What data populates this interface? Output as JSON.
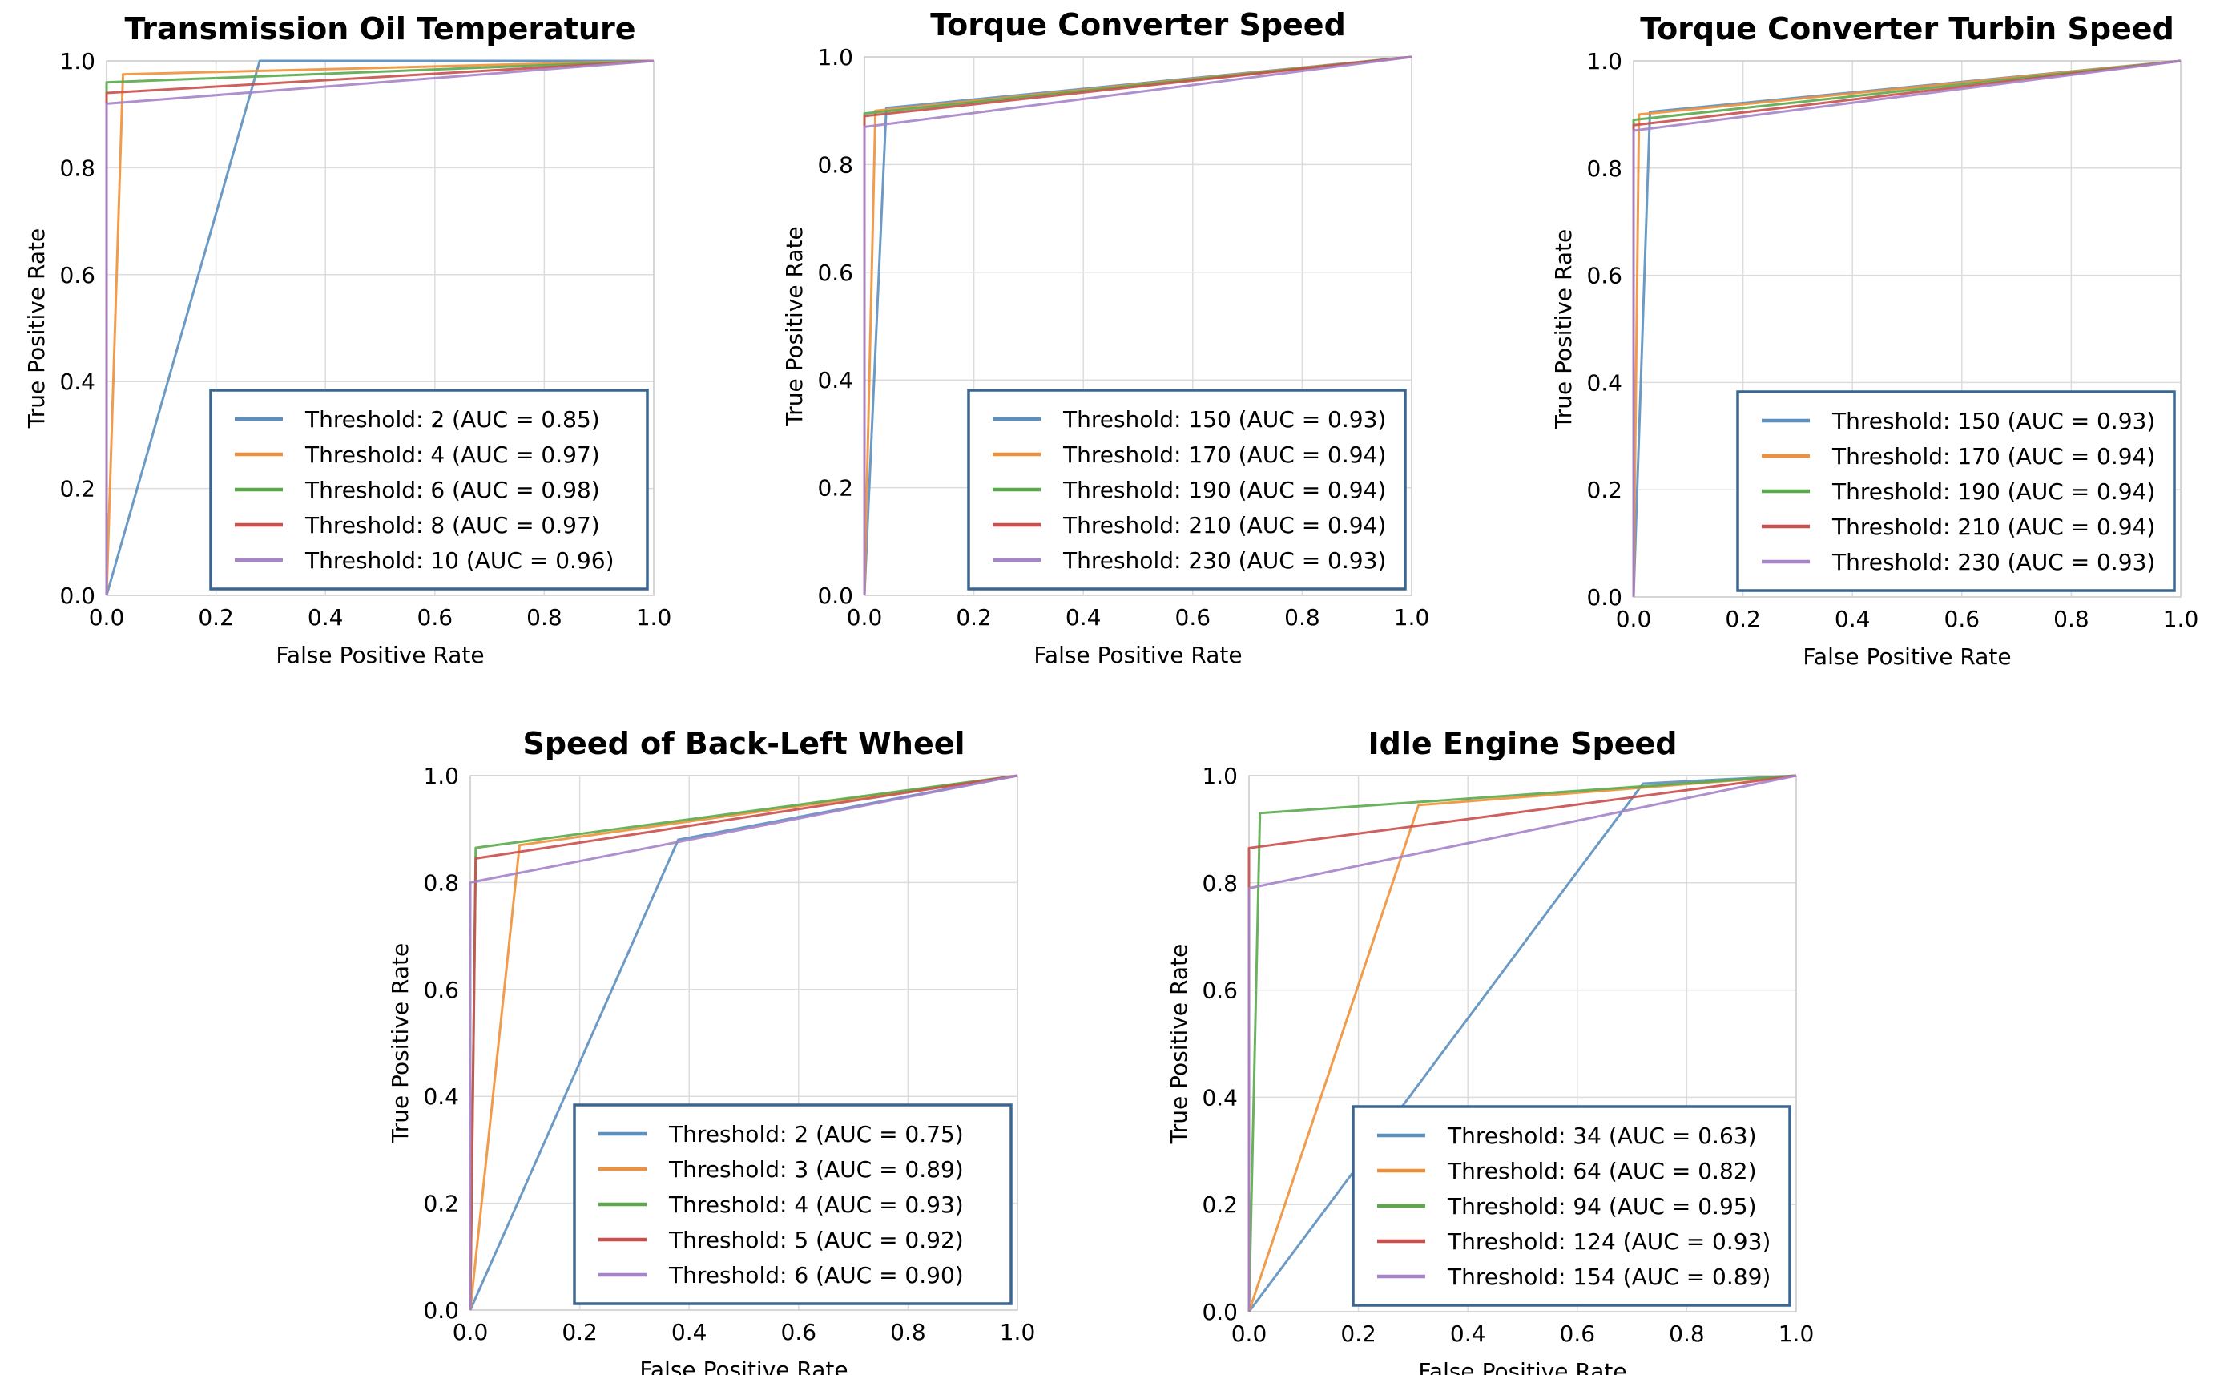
{
  "chart_data": [
    {
      "type": "line",
      "title": "Transmission Oil Temperature",
      "xlabel": "False Positive Rate",
      "ylabel": "True Positive Rate",
      "xlim": [
        0,
        1
      ],
      "ylim": [
        0,
        1
      ],
      "xticks": [
        "0.0",
        "0.2",
        "0.4",
        "0.6",
        "0.8",
        "1.0"
      ],
      "yticks": [
        "0.0",
        "0.2",
        "0.4",
        "0.6",
        "0.8",
        "1.0"
      ],
      "grid": true,
      "legend_position": "lower-right",
      "series": [
        {
          "name": "Threshold: 2 (AUC = 0.85)",
          "color": "#5b8fbf",
          "points": [
            [
              0,
              0
            ],
            [
              0.28,
              1.0
            ],
            [
              1,
              1
            ]
          ]
        },
        {
          "name": "Threshold: 4 (AUC = 0.97)",
          "color": "#f0913a",
          "points": [
            [
              0,
              0
            ],
            [
              0.03,
              0.975
            ],
            [
              1,
              1
            ]
          ]
        },
        {
          "name": "Threshold: 6 (AUC = 0.98)",
          "color": "#5aaa4c",
          "points": [
            [
              0,
              0
            ],
            [
              0,
              0.96
            ],
            [
              1,
              1
            ]
          ]
        },
        {
          "name": "Threshold: 8 (AUC = 0.97)",
          "color": "#c9504d",
          "points": [
            [
              0,
              0
            ],
            [
              0,
              0.94
            ],
            [
              1,
              1
            ]
          ]
        },
        {
          "name": "Threshold: 10 (AUC = 0.96)",
          "color": "#a783c9",
          "points": [
            [
              0,
              0
            ],
            [
              0,
              0.92
            ],
            [
              1,
              1
            ]
          ]
        }
      ]
    },
    {
      "type": "line",
      "title": "Torque Converter Speed",
      "xlabel": "False Positive Rate",
      "ylabel": "True Positive Rate",
      "xlim": [
        0,
        1
      ],
      "ylim": [
        0,
        1
      ],
      "xticks": [
        "0.0",
        "0.2",
        "0.4",
        "0.6",
        "0.8",
        "1.0"
      ],
      "yticks": [
        "0.0",
        "0.2",
        "0.4",
        "0.6",
        "0.8",
        "1.0"
      ],
      "grid": true,
      "legend_position": "lower-right",
      "series": [
        {
          "name": "Threshold: 150 (AUC = 0.93)",
          "color": "#5b8fbf",
          "points": [
            [
              0,
              0
            ],
            [
              0.04,
              0.905
            ],
            [
              1,
              1
            ]
          ]
        },
        {
          "name": "Threshold: 170 (AUC = 0.94)",
          "color": "#f0913a",
          "points": [
            [
              0,
              0
            ],
            [
              0.02,
              0.9
            ],
            [
              1,
              1
            ]
          ]
        },
        {
          "name": "Threshold: 190 (AUC = 0.94)",
          "color": "#5aaa4c",
          "points": [
            [
              0,
              0
            ],
            [
              0,
              0.895
            ],
            [
              1,
              1
            ]
          ]
        },
        {
          "name": "Threshold: 210 (AUC = 0.94)",
          "color": "#c9504d",
          "points": [
            [
              0,
              0
            ],
            [
              0,
              0.89
            ],
            [
              1,
              1
            ]
          ]
        },
        {
          "name": "Threshold: 230 (AUC = 0.93)",
          "color": "#a783c9",
          "points": [
            [
              0,
              0
            ],
            [
              0,
              0.87
            ],
            [
              1,
              1
            ]
          ]
        }
      ]
    },
    {
      "type": "line",
      "title": "Torque Converter Turbin Speed",
      "xlabel": "False Positive Rate",
      "ylabel": "True Positive Rate",
      "xlim": [
        0,
        1
      ],
      "ylim": [
        0,
        1
      ],
      "xticks": [
        "0.0",
        "0.2",
        "0.4",
        "0.6",
        "0.8",
        "1.0"
      ],
      "yticks": [
        "0.0",
        "0.2",
        "0.4",
        "0.6",
        "0.8",
        "1.0"
      ],
      "grid": true,
      "legend_position": "lower-right",
      "series": [
        {
          "name": "Threshold: 150 (AUC = 0.93)",
          "color": "#5b8fbf",
          "points": [
            [
              0,
              0
            ],
            [
              0.03,
              0.905
            ],
            [
              1,
              1
            ]
          ]
        },
        {
          "name": "Threshold: 170 (AUC = 0.94)",
          "color": "#f0913a",
          "points": [
            [
              0,
              0
            ],
            [
              0.01,
              0.9
            ],
            [
              1,
              1
            ]
          ]
        },
        {
          "name": "Threshold: 190 (AUC = 0.94)",
          "color": "#5aaa4c",
          "points": [
            [
              0,
              0
            ],
            [
              0,
              0.89
            ],
            [
              1,
              1
            ]
          ]
        },
        {
          "name": "Threshold: 210 (AUC = 0.94)",
          "color": "#c9504d",
          "points": [
            [
              0,
              0
            ],
            [
              0,
              0.88
            ],
            [
              1,
              1
            ]
          ]
        },
        {
          "name": "Threshold: 230 (AUC = 0.93)",
          "color": "#a783c9",
          "points": [
            [
              0,
              0
            ],
            [
              0,
              0.87
            ],
            [
              1,
              1
            ]
          ]
        }
      ]
    },
    {
      "type": "line",
      "title": "Speed of Back-Left Wheel",
      "xlabel": "False Positive Rate",
      "ylabel": "True Positive Rate",
      "xlim": [
        0,
        1
      ],
      "ylim": [
        0,
        1
      ],
      "xticks": [
        "0.0",
        "0.2",
        "0.4",
        "0.6",
        "0.8",
        "1.0"
      ],
      "yticks": [
        "0.0",
        "0.2",
        "0.4",
        "0.6",
        "0.8",
        "1.0"
      ],
      "grid": true,
      "legend_position": "lower-right",
      "series": [
        {
          "name": "Threshold: 2 (AUC = 0.75)",
          "color": "#5b8fbf",
          "points": [
            [
              0,
              0
            ],
            [
              0.38,
              0.88
            ],
            [
              1,
              1
            ]
          ]
        },
        {
          "name": "Threshold: 3 (AUC = 0.89)",
          "color": "#f0913a",
          "points": [
            [
              0,
              0
            ],
            [
              0.09,
              0.87
            ],
            [
              1,
              1
            ]
          ]
        },
        {
          "name": "Threshold: 4 (AUC = 0.93)",
          "color": "#5aaa4c",
          "points": [
            [
              0,
              0
            ],
            [
              0.01,
              0.865
            ],
            [
              1,
              1
            ]
          ]
        },
        {
          "name": "Threshold: 5 (AUC = 0.92)",
          "color": "#c9504d",
          "points": [
            [
              0,
              0
            ],
            [
              0.01,
              0.845
            ],
            [
              1,
              1
            ]
          ]
        },
        {
          "name": "Threshold: 6 (AUC = 0.90)",
          "color": "#a783c9",
          "points": [
            [
              0,
              0
            ],
            [
              0,
              0.8
            ],
            [
              1,
              1
            ]
          ]
        }
      ]
    },
    {
      "type": "line",
      "title": "Idle Engine Speed",
      "xlabel": "False Positive Rate",
      "ylabel": "True Positive Rate",
      "xlim": [
        0,
        1
      ],
      "ylim": [
        0,
        1
      ],
      "xticks": [
        "0.0",
        "0.2",
        "0.4",
        "0.6",
        "0.8",
        "1.0"
      ],
      "yticks": [
        "0.0",
        "0.2",
        "0.4",
        "0.6",
        "0.8",
        "1.0"
      ],
      "grid": true,
      "legend_position": "lower-right",
      "series": [
        {
          "name": "Threshold: 34 (AUC = 0.63)",
          "color": "#5b8fbf",
          "points": [
            [
              0,
              0
            ],
            [
              0.72,
              0.985
            ],
            [
              1,
              1
            ]
          ]
        },
        {
          "name": "Threshold: 64 (AUC = 0.82)",
          "color": "#f0913a",
          "points": [
            [
              0,
              0
            ],
            [
              0.31,
              0.945
            ],
            [
              1,
              1
            ]
          ]
        },
        {
          "name": "Threshold: 94 (AUC = 0.95)",
          "color": "#5aaa4c",
          "points": [
            [
              0,
              0
            ],
            [
              0.02,
              0.93
            ],
            [
              1,
              1
            ]
          ]
        },
        {
          "name": "Threshold: 124 (AUC = 0.93)",
          "color": "#c9504d",
          "points": [
            [
              0,
              0
            ],
            [
              0,
              0.865
            ],
            [
              1,
              1
            ]
          ]
        },
        {
          "name": "Threshold: 154 (AUC = 0.89)",
          "color": "#a783c9",
          "points": [
            [
              0,
              0
            ],
            [
              0,
              0.79
            ],
            [
              1,
              1
            ]
          ]
        }
      ]
    }
  ]
}
